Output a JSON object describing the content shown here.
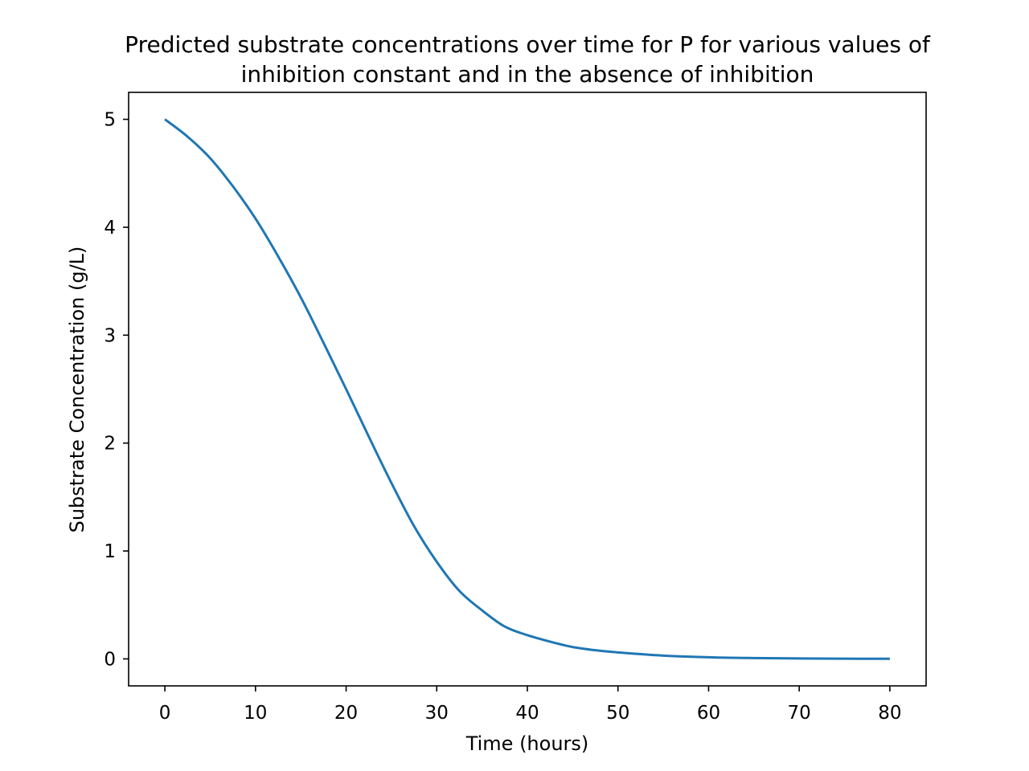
{
  "chart_data": {
    "type": "line",
    "title_lines": [
      "Predicted substrate concentrations over time for P for various values of",
      "inhibition constant and in the absence of inhibition"
    ],
    "xlabel": "Time (hours)",
    "ylabel": "Substrate Concentration (g/L)",
    "xlim": [
      -4,
      84
    ],
    "ylim": [
      -0.25,
      5.25
    ],
    "x_ticks": [
      0,
      10,
      20,
      30,
      40,
      50,
      60,
      70,
      80
    ],
    "y_ticks": [
      0,
      1,
      2,
      3,
      4,
      5
    ],
    "x_tick_labels": [
      "0",
      "10",
      "20",
      "30",
      "40",
      "50",
      "60",
      "70",
      "80"
    ],
    "y_tick_labels": [
      "0",
      "1",
      "2",
      "3",
      "4",
      "5"
    ],
    "grid": false,
    "legend": "none",
    "series": [
      {
        "color": "#1f77b4",
        "x": [
          0,
          2.5,
          5,
          7.5,
          10,
          12.5,
          15,
          17.5,
          20,
          22.5,
          25,
          27.5,
          30,
          32.5,
          35,
          37.5,
          40,
          42.5,
          45,
          47.5,
          50,
          55,
          60,
          65,
          70,
          75,
          80
        ],
        "y": [
          5.0,
          4.84,
          4.64,
          4.38,
          4.08,
          3.73,
          3.35,
          2.93,
          2.5,
          2.06,
          1.63,
          1.23,
          0.9,
          0.63,
          0.45,
          0.3,
          0.22,
          0.16,
          0.11,
          0.08,
          0.06,
          0.03,
          0.015,
          0.008,
          0.004,
          0.002,
          0.001
        ]
      }
    ]
  }
}
